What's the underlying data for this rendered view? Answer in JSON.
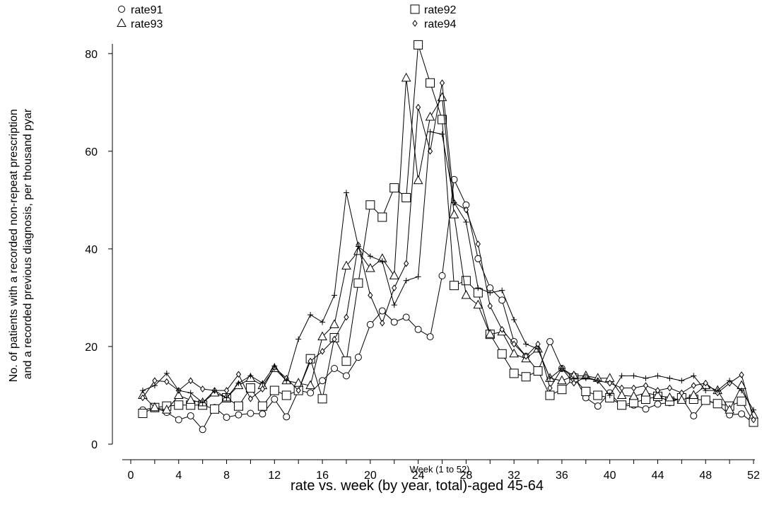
{
  "chart_data": {
    "type": "line",
    "title": "rate vs. week (by year, total)-aged 45-64",
    "xlabel": "Week (1 to 52)",
    "ylabel": "No. of patients with a recorded non-repeat prescription and a recorded previous diagnosis, per thousand pyar",
    "ylabel_lines": [
      "No. of patients with a recorded non-repeat prescription",
      "and a recorded previous diagnosis, per thousand pyar"
    ],
    "xlim": [
      0,
      52
    ],
    "ylim": [
      0,
      82
    ],
    "xticks": [
      0,
      4,
      8,
      12,
      16,
      20,
      24,
      28,
      32,
      36,
      40,
      44,
      48,
      52
    ],
    "yticks": [
      0,
      20,
      40,
      60,
      80
    ],
    "grid": false,
    "legend_position": "top",
    "x": [
      1,
      2,
      3,
      4,
      5,
      6,
      7,
      8,
      9,
      10,
      11,
      12,
      13,
      14,
      15,
      16,
      17,
      18,
      19,
      20,
      21,
      22,
      23,
      24,
      25,
      26,
      27,
      28,
      29,
      30,
      31,
      32,
      33,
      34,
      35,
      36,
      37,
      38,
      39,
      40,
      41,
      42,
      43,
      44,
      45,
      46,
      47,
      48,
      49,
      50,
      51,
      52
    ],
    "series": [
      {
        "name": "rate91",
        "marker": "circle",
        "values": [
          7,
          7.5,
          6.5,
          5,
          5.8,
          3,
          7.5,
          5.5,
          6,
          6.3,
          6.2,
          9.2,
          5.6,
          11,
          10.5,
          13,
          15.5,
          14,
          17.8,
          24.5,
          27.3,
          25,
          26,
          23.5,
          22,
          34.5,
          54.2,
          49,
          38,
          32,
          29.5,
          21,
          18,
          15,
          21,
          15.5,
          14,
          9.5,
          7.8,
          10.5,
          7.8,
          8,
          7.2,
          8.2,
          8.5,
          9.5,
          5.8,
          9,
          8.2,
          6,
          6.2,
          4.3
        ]
      },
      {
        "name": "rate92",
        "marker": "square",
        "values": [
          6.3,
          7.5,
          7.8,
          8,
          8,
          8,
          7.2,
          9.5,
          7.8,
          11.5,
          7.8,
          11,
          10,
          11,
          17.5,
          9.3,
          21.8,
          17,
          33,
          49,
          46.5,
          52.5,
          50.5,
          81.8,
          74,
          66.5,
          32.5,
          33.5,
          31,
          22.5,
          18.5,
          14.5,
          13.8,
          15,
          10,
          11.2,
          13.5,
          10.8,
          10,
          9.5,
          8,
          8.5,
          9.2,
          9.8,
          8.8,
          9.5,
          9.2,
          9,
          8.3,
          7.8,
          8.8,
          4.5
        ]
      },
      {
        "name": "rate93",
        "marker": "triangle",
        "values": [
          10,
          7.5,
          7,
          10,
          9,
          8.5,
          10.5,
          9.5,
          12,
          13.5,
          12,
          15.5,
          13,
          12.5,
          12,
          22,
          24.5,
          36.5,
          39.5,
          36,
          38,
          34.5,
          75,
          54,
          67,
          71,
          47,
          30.5,
          28.5,
          22.5,
          23,
          18.5,
          17.5,
          19.5,
          13.5,
          13,
          14,
          14,
          13.5,
          13.5,
          10,
          9.8,
          10.5,
          10,
          9.5,
          9,
          10,
          12,
          11,
          7,
          12,
          6
        ]
      },
      {
        "name": "rate94",
        "marker": "diamond",
        "values": [
          9.5,
          13,
          12.8,
          11,
          13,
          11.3,
          11,
          11,
          14.3,
          9.3,
          11.3,
          15.7,
          13.5,
          11,
          17,
          19,
          21.5,
          26,
          40.8,
          30.5,
          24.8,
          32,
          37,
          69,
          60,
          74,
          49.5,
          48,
          41,
          28.3,
          23.5,
          20.5,
          18,
          20.5,
          11.5,
          15.5,
          12.5,
          13.8,
          13,
          12.5,
          11.5,
          11.5,
          12,
          11,
          11.5,
          10.5,
          12,
          12.5,
          10.5,
          12.5,
          14.2,
          5
        ]
      },
      {
        "name": "",
        "marker": "plus",
        "values": [
          11,
          12,
          14.5,
          11,
          10.5,
          8.5,
          11,
          9.5,
          12.5,
          14,
          12.5,
          16,
          13,
          21.5,
          26.5,
          25,
          30.5,
          51.5,
          40.5,
          38.5,
          37.5,
          28.5,
          33.5,
          34.3,
          64,
          63.5,
          49.5,
          45.5,
          32,
          31,
          31.5,
          25.5,
          20.5,
          19.5,
          13.5,
          15.5,
          13.5,
          13.5,
          13,
          10,
          14,
          14,
          13.5,
          14,
          13.5,
          13,
          14,
          11,
          11,
          13,
          11,
          7
        ]
      }
    ]
  }
}
